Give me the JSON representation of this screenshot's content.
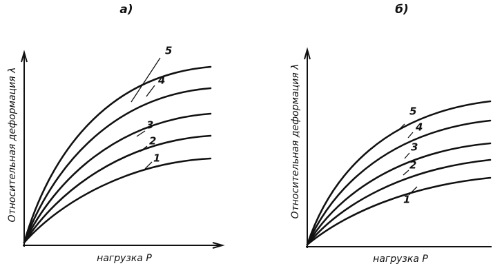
{
  "panels": [
    {
      "label": "а)",
      "y_axis": "Относительная деформация λ",
      "x_axis": "нагрузка P",
      "curves": [
        "1",
        "2",
        "3",
        "4",
        "5"
      ]
    },
    {
      "label": "б)",
      "y_axis": "Относительная деформация λ",
      "x_axis": "нагрузка P",
      "curves": [
        "1",
        "2",
        "3",
        "4",
        "5"
      ]
    }
  ]
}
